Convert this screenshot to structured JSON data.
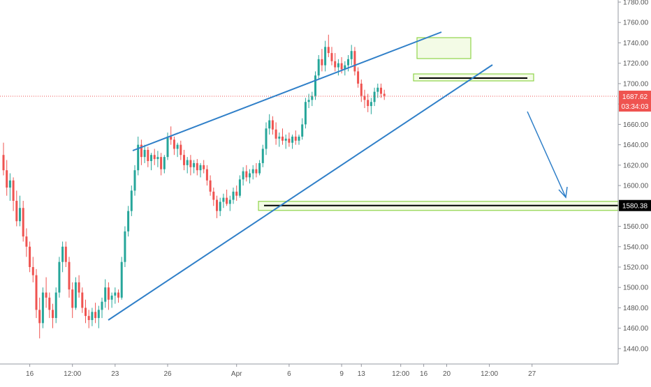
{
  "chart_data": {
    "type": "candlestick",
    "title": "",
    "xlabel": "",
    "ylabel": "",
    "ylim": [
      1430,
      1780
    ],
    "grid": false,
    "y_ticks": [
      1440,
      1460,
      1480,
      1500,
      1520,
      1540,
      1560,
      1580,
      1600,
      1620,
      1640,
      1660,
      1680,
      1700,
      1720,
      1740,
      1760,
      1780
    ],
    "y_tick_labels": [
      "1440.00",
      "1460.00",
      "1480.00",
      "1500.00",
      "1520.00",
      "1540.00",
      "1560.00",
      "1580.00",
      "1600.00",
      "1620.00",
      "1640.00",
      "1660.00",
      "1680.00",
      "1700.00",
      "1720.00",
      "1740.00",
      "1760.00",
      "1780.00"
    ],
    "x_ticks": [
      {
        "label": "16",
        "bar": 8
      },
      {
        "label": "12:00",
        "bar": 21
      },
      {
        "label": "23",
        "bar": 34
      },
      {
        "label": "26",
        "bar": 50
      },
      {
        "label": "Apr",
        "bar": 71
      },
      {
        "label": "6",
        "bar": 87
      },
      {
        "label": "9",
        "bar": 103
      },
      {
        "label": "13",
        "bar": 109
      },
      {
        "label": "12:00",
        "bar": 121
      },
      {
        "label": "16",
        "bar": 128
      },
      {
        "label": "20",
        "bar": 135
      },
      {
        "label": "12:00",
        "bar": 148
      },
      {
        "label": "27",
        "bar": 161
      }
    ],
    "series": [
      {
        "values": [
          [
            1630,
            1642,
            1610,
            1615
          ],
          [
            1615,
            1625,
            1590,
            1598
          ],
          [
            1598,
            1612,
            1585,
            1605
          ],
          [
            1605,
            1608,
            1575,
            1585
          ],
          [
            1585,
            1595,
            1560,
            1565
          ],
          [
            1565,
            1590,
            1560,
            1578
          ],
          [
            1578,
            1585,
            1545,
            1550
          ],
          [
            1550,
            1558,
            1530,
            1540
          ],
          [
            1540,
            1545,
            1515,
            1520
          ],
          [
            1520,
            1530,
            1505,
            1512
          ],
          [
            1512,
            1518,
            1470,
            1478
          ],
          [
            1478,
            1490,
            1450,
            1465
          ],
          [
            1465,
            1500,
            1460,
            1495
          ],
          [
            1495,
            1510,
            1480,
            1490
          ],
          [
            1490,
            1495,
            1470,
            1478
          ],
          [
            1478,
            1484,
            1460,
            1470
          ],
          [
            1470,
            1500,
            1465,
            1495
          ],
          [
            1495,
            1530,
            1490,
            1525
          ],
          [
            1525,
            1545,
            1515,
            1540
          ],
          [
            1540,
            1545,
            1520,
            1525
          ],
          [
            1525,
            1530,
            1490,
            1498
          ],
          [
            1498,
            1505,
            1470,
            1480
          ],
          [
            1480,
            1510,
            1478,
            1505
          ],
          [
            1505,
            1512,
            1490,
            1495
          ],
          [
            1495,
            1500,
            1475,
            1480
          ],
          [
            1480,
            1488,
            1465,
            1472
          ],
          [
            1472,
            1478,
            1460,
            1468
          ],
          [
            1468,
            1480,
            1462,
            1476
          ],
          [
            1476,
            1485,
            1465,
            1470
          ],
          [
            1470,
            1482,
            1460,
            1478
          ],
          [
            1478,
            1490,
            1470,
            1486
          ],
          [
            1486,
            1508,
            1480,
            1500
          ],
          [
            1500,
            1505,
            1478,
            1488
          ],
          [
            1488,
            1495,
            1480,
            1492
          ],
          [
            1492,
            1500,
            1484,
            1495
          ],
          [
            1495,
            1498,
            1485,
            1490
          ],
          [
            1490,
            1530,
            1488,
            1525
          ],
          [
            1525,
            1560,
            1520,
            1555
          ],
          [
            1555,
            1580,
            1550,
            1575
          ],
          [
            1575,
            1600,
            1570,
            1595
          ],
          [
            1595,
            1620,
            1590,
            1615
          ],
          [
            1615,
            1648,
            1610,
            1640
          ],
          [
            1640,
            1645,
            1620,
            1628
          ],
          [
            1628,
            1640,
            1622,
            1635
          ],
          [
            1635,
            1638,
            1618,
            1624
          ],
          [
            1624,
            1632,
            1615,
            1630
          ],
          [
            1630,
            1636,
            1620,
            1626
          ],
          [
            1626,
            1634,
            1618,
            1628
          ],
          [
            1628,
            1632,
            1610,
            1616
          ],
          [
            1616,
            1630,
            1612,
            1628
          ],
          [
            1628,
            1652,
            1625,
            1648
          ],
          [
            1648,
            1658,
            1640,
            1645
          ],
          [
            1645,
            1648,
            1630,
            1636
          ],
          [
            1636,
            1642,
            1628,
            1640
          ],
          [
            1640,
            1644,
            1625,
            1630
          ],
          [
            1630,
            1635,
            1615,
            1620
          ],
          [
            1620,
            1628,
            1612,
            1625
          ],
          [
            1625,
            1630,
            1610,
            1618
          ],
          [
            1618,
            1625,
            1612,
            1622
          ],
          [
            1622,
            1626,
            1610,
            1615
          ],
          [
            1615,
            1622,
            1608,
            1620
          ],
          [
            1620,
            1625,
            1612,
            1616
          ],
          [
            1616,
            1620,
            1600,
            1605
          ],
          [
            1605,
            1610,
            1590,
            1594
          ],
          [
            1594,
            1598,
            1580,
            1586
          ],
          [
            1586,
            1590,
            1568,
            1575
          ],
          [
            1575,
            1588,
            1570,
            1584
          ],
          [
            1584,
            1592,
            1578,
            1588
          ],
          [
            1588,
            1596,
            1580,
            1582
          ],
          [
            1582,
            1590,
            1575,
            1586
          ],
          [
            1586,
            1598,
            1582,
            1594
          ],
          [
            1594,
            1600,
            1585,
            1590
          ],
          [
            1590,
            1610,
            1588,
            1606
          ],
          [
            1606,
            1618,
            1600,
            1614
          ],
          [
            1614,
            1620,
            1604,
            1608
          ],
          [
            1608,
            1616,
            1602,
            1612
          ],
          [
            1612,
            1620,
            1606,
            1616
          ],
          [
            1616,
            1622,
            1608,
            1612
          ],
          [
            1612,
            1625,
            1610,
            1622
          ],
          [
            1622,
            1640,
            1618,
            1636
          ],
          [
            1636,
            1662,
            1630,
            1656
          ],
          [
            1656,
            1670,
            1650,
            1664
          ],
          [
            1664,
            1668,
            1650,
            1655
          ],
          [
            1655,
            1662,
            1640,
            1646
          ],
          [
            1646,
            1652,
            1638,
            1648
          ],
          [
            1648,
            1656,
            1640,
            1644
          ],
          [
            1644,
            1650,
            1636,
            1646
          ],
          [
            1646,
            1652,
            1638,
            1642
          ],
          [
            1642,
            1650,
            1636,
            1648
          ],
          [
            1648,
            1654,
            1640,
            1644
          ],
          [
            1644,
            1650,
            1640,
            1648
          ],
          [
            1648,
            1666,
            1645,
            1660
          ],
          [
            1660,
            1686,
            1656,
            1682
          ],
          [
            1682,
            1690,
            1676,
            1684
          ],
          [
            1684,
            1692,
            1678,
            1688
          ],
          [
            1688,
            1712,
            1684,
            1708
          ],
          [
            1708,
            1728,
            1704,
            1724
          ],
          [
            1724,
            1734,
            1712,
            1718
          ],
          [
            1718,
            1742,
            1712,
            1736
          ],
          [
            1736,
            1748,
            1726,
            1730
          ],
          [
            1730,
            1736,
            1718,
            1722
          ],
          [
            1722,
            1730,
            1712,
            1716
          ],
          [
            1716,
            1724,
            1708,
            1720
          ],
          [
            1720,
            1726,
            1710,
            1714
          ],
          [
            1714,
            1722,
            1708,
            1718
          ],
          [
            1718,
            1728,
            1712,
            1724
          ],
          [
            1724,
            1738,
            1718,
            1732
          ],
          [
            1732,
            1736,
            1708,
            1712
          ],
          [
            1712,
            1716,
            1696,
            1700
          ],
          [
            1700,
            1704,
            1682,
            1688
          ],
          [
            1688,
            1694,
            1676,
            1684
          ],
          [
            1684,
            1690,
            1672,
            1678
          ],
          [
            1678,
            1686,
            1670,
            1682
          ],
          [
            1682,
            1696,
            1678,
            1692
          ],
          [
            1692,
            1700,
            1686,
            1696
          ],
          [
            1696,
            1700,
            1686,
            1690
          ],
          [
            1690,
            1694,
            1684,
            1688
          ]
        ]
      }
    ],
    "current_price": {
      "value": 1687.62,
      "label": "1687.62",
      "countdown": "03:34:03"
    },
    "target_price": {
      "value": 1580.38,
      "label": "1580.38"
    },
    "colors": {
      "up": "#26a69a",
      "down": "#ef5350",
      "trendline": "#2f7fc8",
      "zone_border": "#8fd44a",
      "zone_fill": "#f3fbe6",
      "level_line": "#000000",
      "price_line": "#ef5350",
      "axis_text": "#555555",
      "axis_line": "#9598a1"
    }
  }
}
